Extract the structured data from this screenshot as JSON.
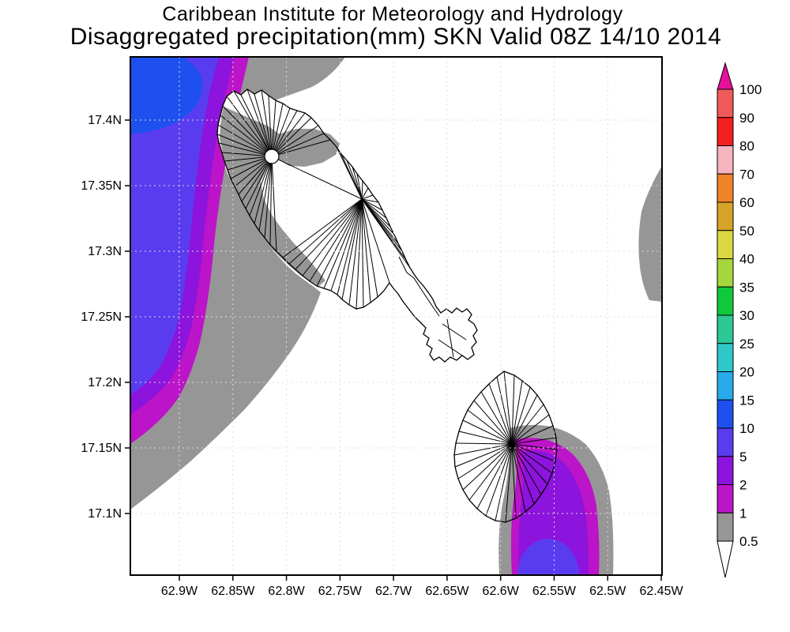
{
  "header": {
    "title_line1": "Caribbean Institute for Meteorology and Hydrology",
    "title_line2": "Disaggregated precipitation(mm) SKN Valid 08Z 14/10 2014"
  },
  "axes": {
    "lat_labels": [
      "17.4N",
      "17.35N",
      "17.3N",
      "17.25N",
      "17.2N",
      "17.15N",
      "17.1N"
    ],
    "lon_labels": [
      "62.9W",
      "62.85W",
      "62.8W",
      "62.75W",
      "62.7W",
      "62.65W",
      "62.6W",
      "62.55W",
      "62.5W",
      "62.45W"
    ]
  },
  "colorbar": {
    "labels": [
      "100",
      "90",
      "80",
      "70",
      "60",
      "50",
      "40",
      "35",
      "30",
      "25",
      "20",
      "15",
      "10",
      "5",
      "2",
      "1",
      "0.5"
    ],
    "segment_colors": [
      "#F05A5A",
      "#F51E1E",
      "#F5B4BE",
      "#F08228",
      "#D7A228",
      "#DCD741",
      "#A5D73C",
      "#0FC83C",
      "#2DC896",
      "#2FC8C8",
      "#28AAEB",
      "#1E50F0",
      "#5A3CF0",
      "#8C14DC",
      "#BC14C8",
      "#969696"
    ],
    "top_arrow_color": "#E6109B",
    "bottom_arrow_color": "#FFFFFF"
  },
  "map": {
    "fill_colors": {
      "gray": "#969696",
      "magenta": "#BC14C8",
      "purple": "#8C14DC",
      "violet": "#5A3CF0",
      "blue": "#1E50F0"
    },
    "land_color": "#FFFFFF",
    "coastline_color": "#000000",
    "grid_color": "#DCDCDC"
  },
  "chart_data": {
    "type": "heatmap",
    "subtype": "filled-contour precipitation map",
    "title": "Caribbean Institute for Meteorology and Hydrology",
    "subtitle": "Disaggregated precipitation(mm) SKN Valid 08Z 14/10 2014",
    "units": "mm",
    "region": "SKN (St. Kitts and Nevis)",
    "valid_time": "08Z 14/10 2014",
    "lat_ticks": [
      17.4,
      17.35,
      17.3,
      17.25,
      17.2,
      17.15,
      17.1
    ],
    "lon_ticks_west": [
      62.9,
      62.85,
      62.8,
      62.75,
      62.7,
      62.65,
      62.6,
      62.55,
      62.5,
      62.45
    ],
    "contour_levels_mm": [
      0.5,
      1,
      2,
      5,
      10,
      15,
      20,
      25,
      30,
      35,
      40,
      50,
      60,
      70,
      80,
      90,
      100
    ],
    "legend_position": "right",
    "grid": "dashed lat/lon grid every 0.05 degrees",
    "features": [
      {
        "name": "west-offshore-band",
        "value_range_mm": "0.5 to 15",
        "description": "Rain band along the entire western edge; 10-15 mm core at the far northwest corner, decreasing eastward through 5-10, 2-5, 1-2 and 0.5-1 mm bands"
      },
      {
        "name": "st-kitts-west-flank",
        "value_range_mm": "0.5 to 1",
        "description": "0.5-1 mm shading over the western flank and north-central basins of St. Kitts"
      },
      {
        "name": "nevis-southeast-cell",
        "value_range_mm": "0.5 to 10",
        "description": "Rain cell over southeast Nevis extending offshore to the south; 5-10 mm core with 2-5, 1-2 and 0.5-1 mm rings"
      },
      {
        "name": "east-edge-patch",
        "value_range_mm": "0.5 to 1",
        "description": "Small 0.5-1 mm patch on the eastern map edge near 17.3N-17.35N"
      }
    ]
  }
}
